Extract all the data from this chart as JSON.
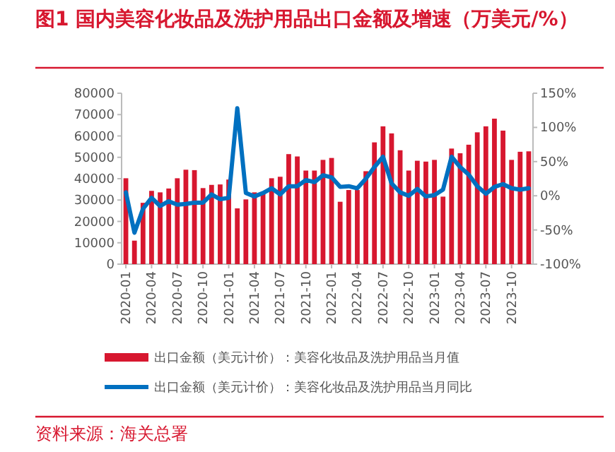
{
  "chart_data": {
    "type": "bar",
    "title": "图1  国内美容化妆品及洗护用品出口金额及增速（万美元/%）",
    "categories": [
      "2020-01",
      null,
      null,
      "2020-04",
      null,
      null,
      "2020-07",
      null,
      null,
      "2020-10",
      null,
      null,
      "2021-01",
      null,
      null,
      "2021-04",
      null,
      null,
      "2021-07",
      null,
      null,
      "2021-10",
      null,
      null,
      "2022-01",
      null,
      null,
      "2022-04",
      null,
      null,
      "2022-07",
      null,
      null,
      "2022-10",
      null,
      null,
      "2023-01",
      null,
      null,
      "2023-04",
      null,
      null,
      "2023-07",
      null,
      null,
      "2023-10",
      null,
      null
    ],
    "series": [
      {
        "name": "出口金额（美元计价）：美容化妆品及洗护用品当月值",
        "color": "#d7172f",
        "values": [
          40200,
          11000,
          28700,
          34300,
          33600,
          35400,
          40200,
          44200,
          44000,
          35600,
          37100,
          37300,
          39600,
          26100,
          30300,
          33600,
          33800,
          40200,
          40900,
          51500,
          50400,
          43800,
          43800,
          48800,
          49700,
          29200,
          34700,
          34700,
          43500,
          57000,
          64500,
          61200,
          53300,
          43800,
          48400,
          48000,
          48800,
          31600,
          54100,
          51900,
          55900,
          61700,
          64500,
          68100,
          62500,
          48800,
          52600,
          52800
        ]
      },
      {
        "name": "出口金额（美元计价）：美容化妆品及洗护用品当月同比",
        "type": "line",
        "axis": "y2",
        "color": "#0070c0",
        "values": [
          5,
          -54,
          -19,
          -3,
          -15,
          -8,
          -13,
          -12,
          -10,
          -10,
          2,
          -5,
          -3,
          128,
          4,
          -1,
          4,
          11,
          2,
          14,
          14,
          23,
          20,
          30,
          27,
          13,
          14,
          11,
          25,
          42,
          57,
          18,
          5,
          0,
          10,
          -1,
          1,
          9,
          57,
          42,
          31,
          14,
          3,
          13,
          17,
          11,
          9,
          11
        ]
      }
    ],
    "ylim": [
      0,
      80000
    ],
    "yticks": [
      0,
      10000,
      20000,
      30000,
      40000,
      50000,
      60000,
      70000,
      80000
    ],
    "y2lim": [
      -100,
      150
    ],
    "y2ticks": [
      {
        "value": -100,
        "label": "-100%"
      },
      {
        "value": -50,
        "label": "-50%"
      },
      {
        "value": 0,
        "label": "0%"
      },
      {
        "value": 50,
        "label": "50%"
      },
      {
        "value": 100,
        "label": "100%"
      },
      {
        "value": 150,
        "label": "150%"
      }
    ],
    "legend": "bottom",
    "annotations": [
      "资料来源：海关总署"
    ]
  }
}
